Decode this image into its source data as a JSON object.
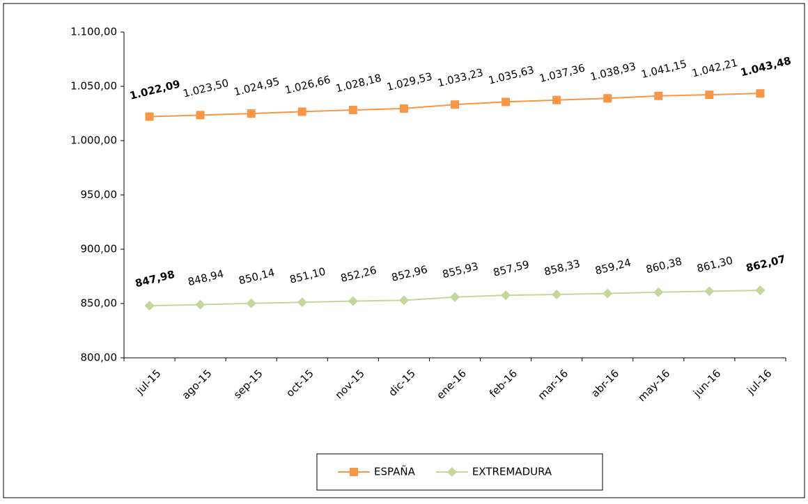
{
  "chart_data": {
    "type": "line",
    "categories": [
      "jul-15",
      "ago-15",
      "sep-15",
      "oct-15",
      "nov-15",
      "dic-15",
      "ene-16",
      "feb-16",
      "mar-16",
      "abr-16",
      "may-16",
      "jun-16",
      "jul-16"
    ],
    "series": [
      {
        "name": "ESPAÑA",
        "color": "#f79646",
        "marker": "square",
        "values": [
          1022.09,
          1023.5,
          1024.95,
          1026.66,
          1028.18,
          1029.53,
          1033.23,
          1035.63,
          1037.36,
          1038.93,
          1041.15,
          1042.21,
          1043.48
        ],
        "value_labels": [
          "1.022,09",
          "1.023,50",
          "1.024,95",
          "1.026,66",
          "1.028,18",
          "1.029,53",
          "1.033,23",
          "1.035,63",
          "1.037,36",
          "1.038,93",
          "1.041,15",
          "1.042,21",
          "1.043,48"
        ]
      },
      {
        "name": "EXTREMADURA",
        "color": "#c3d69b",
        "marker": "diamond",
        "values": [
          847.98,
          848.94,
          850.14,
          851.1,
          852.26,
          852.96,
          855.93,
          857.59,
          858.33,
          859.24,
          860.38,
          861.3,
          862.07
        ],
        "value_labels": [
          "847,98",
          "848,94",
          "850,14",
          "851,10",
          "852,26",
          "852,96",
          "855,93",
          "857,59",
          "858,33",
          "859,24",
          "860,38",
          "861,30",
          "862,07"
        ]
      }
    ],
    "ylim": [
      800,
      1100
    ],
    "yticks": [
      {
        "value": 800,
        "label": "800,00"
      },
      {
        "value": 850,
        "label": "850,00"
      },
      {
        "value": 900,
        "label": "900,00"
      },
      {
        "value": 950,
        "label": "950,00"
      },
      {
        "value": 1000,
        "label": "1.000,00"
      },
      {
        "value": 1050,
        "label": "1.050,00"
      },
      {
        "value": 1100,
        "label": "1.100,00"
      }
    ],
    "legend": "bottom"
  }
}
